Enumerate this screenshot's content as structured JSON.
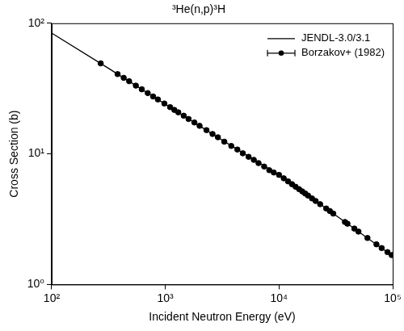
{
  "chart_data": {
    "type": "line",
    "title": "³He(n,p)³H",
    "x_label": "Incident Neutron Energy (eV)",
    "y_label": "Cross Section (b)",
    "log": true,
    "grid": false,
    "legend": "upper right",
    "xlim": [
      100,
      100000
    ],
    "ylim": [
      1,
      100
    ],
    "xticks": [
      {
        "value": 100,
        "label": "10²"
      },
      {
        "value": 1000,
        "label": "10³"
      },
      {
        "value": 10000,
        "label": "10⁴"
      },
      {
        "value": 100000,
        "label": "10⁵"
      }
    ],
    "yticks": [
      {
        "value": 1,
        "label": "10⁰"
      },
      {
        "value": 10,
        "label": "10¹"
      },
      {
        "value": 100,
        "label": "10²"
      }
    ],
    "series": [
      {
        "name": "JENDL-3.0/3.1",
        "type": "line",
        "color": "#000000",
        "line_style": "solid",
        "marker": "none",
        "x": [
          100,
          300,
          1000,
          3000,
          10000,
          30000,
          100000
        ],
        "values": [
          84,
          46.5,
          24,
          13.1,
          6.9,
          3.49,
          1.65
        ]
      },
      {
        "name": "Borzakov+ (1982)",
        "type": "scatter",
        "color": "#000000",
        "marker": "circle",
        "x": [
          270,
          380,
          430,
          480,
          550,
          620,
          700,
          780,
          860,
          980,
          1100,
          1200,
          1300,
          1450,
          1600,
          1800,
          2000,
          2300,
          2600,
          2900,
          3300,
          3800,
          4300,
          4800,
          5400,
          6000,
          6600,
          7400,
          8200,
          9000,
          10000,
          11000,
          12000,
          13000,
          14000,
          15000,
          16000,
          17000,
          18000,
          19500,
          21000,
          23000,
          26000,
          28000,
          30000,
          38000,
          40000,
          46000,
          50000,
          60000,
          72000,
          80000,
          90000,
          98000
        ],
        "values": [
          49.3,
          40.8,
          38.2,
          36.0,
          33.3,
          31.2,
          29.2,
          27.5,
          26.1,
          24.3,
          22.8,
          21.7,
          20.8,
          19.6,
          18.5,
          17.4,
          16.4,
          15.2,
          14.2,
          13.4,
          12.4,
          11.5,
          10.8,
          10.1,
          9.5,
          9.0,
          8.5,
          8.0,
          7.5,
          7.2,
          6.9,
          6.5,
          6.16,
          5.86,
          5.6,
          5.37,
          5.16,
          4.97,
          4.8,
          4.56,
          4.36,
          4.12,
          3.82,
          3.65,
          3.49,
          3.01,
          2.92,
          2.68,
          2.54,
          2.27,
          2.03,
          1.9,
          1.77,
          1.68
        ],
        "errors": [
          1.2,
          1.0,
          1.0,
          0.9,
          0.8,
          0.8,
          0.7,
          0.7,
          0.7,
          0.6,
          0.6,
          0.5,
          0.5,
          0.5,
          0.5,
          0.4,
          0.4,
          0.4,
          0.4,
          0.3,
          0.3,
          0.3,
          0.3,
          0.25,
          0.25,
          0.23,
          0.21,
          0.2,
          0.19,
          0.18,
          0.17,
          0.16,
          0.15,
          0.15,
          0.14,
          0.14,
          0.13,
          0.13,
          0.12,
          0.12,
          0.11,
          0.11,
          0.1,
          0.1,
          0.09,
          0.08,
          0.08,
          0.07,
          0.07,
          0.06,
          0.06,
          0.06,
          0.05,
          0.05
        ]
      }
    ]
  }
}
